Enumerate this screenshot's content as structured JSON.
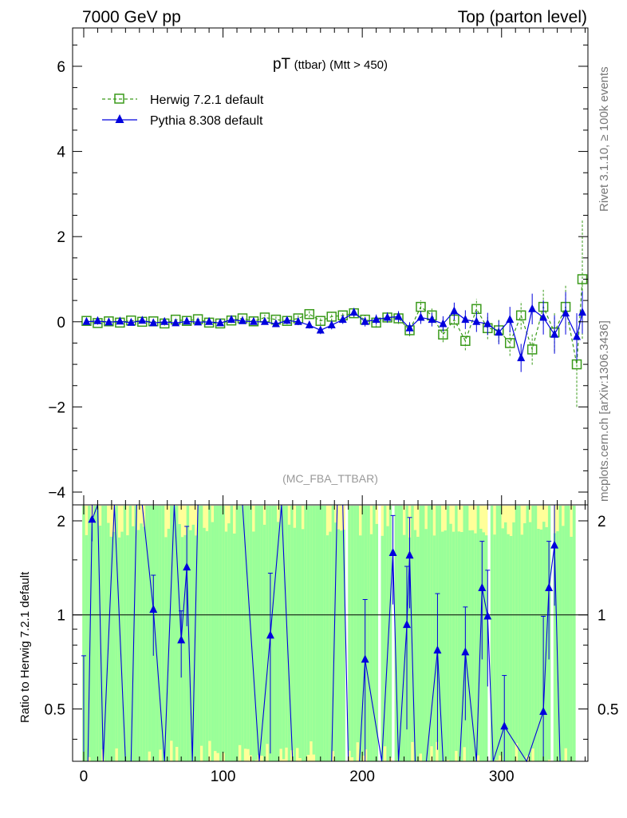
{
  "header": {
    "left": "7000 GeV pp",
    "right": "Top (parton level)"
  },
  "side": {
    "rivet": "Rivet 3.1.10, ≥ 100k events",
    "mcplots": "mcplots.cern.ch [arXiv:1306.3436]"
  },
  "chart_data": {
    "type": "scatter",
    "title_main": "pT",
    "title_sub1": "(ttbar)",
    "title_sub2": "(Mtt > 450)",
    "analysis": "(MC_FBA_TTBAR)",
    "ratio_ylabel": "Ratio to Herwig 7.2.1 default",
    "colors": {
      "herwig": "#3a9a1a",
      "pythia": "#0000dd",
      "band_green": "#99ff99",
      "band_yellow": "#ffff99"
    },
    "xlim": [
      -8,
      362
    ],
    "ylim_main": [
      -4.3,
      6.9
    ],
    "ylim_ratio": [
      0.34,
      2.25
    ],
    "xticks": [
      0,
      100,
      200,
      300
    ],
    "yticks_main": [
      -4,
      -2,
      0,
      2,
      4,
      6
    ],
    "yticks_ratio": [
      0.5,
      1,
      2
    ],
    "ratio_tick_labels": [
      "0.5",
      "1",
      "2"
    ],
    "main_tick_labels": [
      "−4",
      "−2",
      "0",
      "2",
      "4",
      "6"
    ],
    "x_tick_labels": [
      "0",
      "100",
      "200",
      "300"
    ],
    "series": [
      {
        "name": "Herwig 7.2.1 default",
        "x": [
          2,
          10,
          18,
          26,
          34,
          42,
          50,
          58,
          66,
          74,
          82,
          90,
          98,
          106,
          114,
          122,
          130,
          138,
          146,
          154,
          162,
          170,
          178,
          186,
          194,
          202,
          210,
          218,
          226,
          234,
          242,
          250,
          258,
          266,
          274,
          282,
          290,
          298,
          306,
          314,
          322,
          330,
          338,
          346,
          354,
          358
        ],
        "y": [
          0.02,
          -0.03,
          0.01,
          -0.02,
          0.03,
          0.0,
          0.01,
          -0.04,
          0.05,
          0.02,
          0.06,
          -0.02,
          -0.04,
          0.03,
          0.08,
          0.01,
          0.1,
          0.05,
          0.02,
          0.08,
          0.18,
          0.02,
          0.12,
          0.15,
          0.2,
          0.05,
          -0.02,
          0.1,
          0.08,
          -0.2,
          0.35,
          0.15,
          -0.3,
          0.05,
          -0.45,
          0.3,
          -0.15,
          -0.2,
          -0.5,
          0.15,
          -0.65,
          0.35,
          -0.25,
          0.35,
          -1.0,
          1.0
        ],
        "err": [
          0.04,
          0.04,
          0.04,
          0.04,
          0.04,
          0.04,
          0.04,
          0.05,
          0.05,
          0.05,
          0.05,
          0.05,
          0.06,
          0.06,
          0.06,
          0.07,
          0.07,
          0.07,
          0.08,
          0.08,
          0.08,
          0.09,
          0.1,
          0.1,
          0.1,
          0.11,
          0.12,
          0.12,
          0.13,
          0.14,
          0.15,
          0.16,
          0.18,
          0.2,
          0.22,
          0.24,
          0.26,
          0.28,
          0.3,
          0.33,
          0.36,
          0.4,
          0.45,
          0.5,
          1.0,
          1.4
        ]
      },
      {
        "name": "Pythia 8.308 default",
        "x": [
          2,
          10,
          18,
          26,
          34,
          42,
          50,
          58,
          66,
          74,
          82,
          90,
          98,
          106,
          114,
          122,
          130,
          138,
          146,
          154,
          162,
          170,
          178,
          186,
          194,
          202,
          210,
          218,
          226,
          234,
          242,
          250,
          258,
          266,
          274,
          282,
          290,
          298,
          306,
          314,
          322,
          330,
          338,
          346,
          354,
          358
        ],
        "y": [
          0.0,
          0.02,
          -0.01,
          0.01,
          -0.02,
          0.03,
          -0.03,
          0.0,
          -0.03,
          0.01,
          -0.01,
          0.0,
          -0.03,
          0.05,
          0.02,
          0.0,
          0.0,
          -0.05,
          0.03,
          0.0,
          -0.08,
          -0.2,
          -0.08,
          0.05,
          0.22,
          0.0,
          0.05,
          0.1,
          0.12,
          -0.15,
          0.1,
          0.05,
          -0.05,
          0.25,
          0.05,
          0.0,
          -0.05,
          -0.25,
          0.05,
          -0.85,
          0.3,
          0.1,
          -0.3,
          0.2,
          -0.35,
          0.22
        ],
        "err": [
          0.04,
          0.04,
          0.04,
          0.04,
          0.04,
          0.04,
          0.04,
          0.05,
          0.05,
          0.05,
          0.05,
          0.05,
          0.06,
          0.06,
          0.06,
          0.07,
          0.07,
          0.07,
          0.08,
          0.08,
          0.08,
          0.09,
          0.1,
          0.1,
          0.1,
          0.11,
          0.12,
          0.12,
          0.13,
          0.14,
          0.15,
          0.16,
          0.18,
          0.2,
          0.22,
          0.24,
          0.26,
          0.28,
          0.3,
          0.33,
          0.36,
          0.4,
          0.45,
          0.5,
          0.55,
          0.5
        ]
      }
    ],
    "ratio": {
      "x": [
        0,
        3,
        6,
        10,
        14,
        22,
        30,
        34,
        38,
        42,
        50,
        58,
        65,
        70,
        74,
        78,
        82,
        94,
        114,
        126,
        134,
        142,
        150,
        162,
        178,
        182,
        186,
        190,
        194,
        198,
        202,
        214,
        222,
        226,
        232,
        234,
        238,
        242,
        246,
        254,
        258,
        270,
        274,
        282,
        286,
        290,
        294,
        302,
        318,
        330,
        334,
        338,
        342,
        354
      ],
      "y": [
        0.34,
        0.34,
        2.02,
        2.25,
        0.34,
        2.25,
        0.34,
        0.34,
        2.25,
        2.25,
        1.04,
        0.34,
        2.25,
        0.83,
        1.42,
        0.34,
        2.25,
        2.25,
        2.25,
        0.34,
        0.86,
        2.25,
        0.34,
        0.34,
        0.34,
        2.25,
        2.25,
        0.34,
        0.34,
        0.34,
        0.72,
        0.34,
        1.58,
        0.34,
        0.93,
        1.55,
        0.34,
        0.34,
        0.34,
        0.77,
        0.34,
        0.34,
        0.76,
        0.34,
        1.22,
        0.99,
        0.34,
        0.44,
        0.34,
        0.49,
        1.22,
        1.67,
        0.34,
        0.34
      ],
      "err": [
        0.4,
        0.0,
        0.3,
        0.0,
        0.0,
        0.0,
        0.0,
        0.0,
        0.0,
        0.0,
        0.3,
        0.0,
        0.0,
        0.2,
        0.5,
        0.0,
        0.0,
        0.0,
        0.0,
        0.0,
        0.5,
        0.0,
        0.0,
        0.0,
        0.0,
        0.0,
        0.0,
        0.0,
        0.0,
        0.0,
        0.4,
        0.0,
        0.5,
        0.0,
        0.5,
        0.5,
        0.0,
        0.0,
        0.0,
        0.4,
        0.0,
        0.0,
        0.3,
        0.0,
        0.5,
        0.4,
        0.0,
        0.2,
        0.0,
        0.5,
        0.5,
        0.6,
        0.0,
        0.0
      ]
    }
  }
}
